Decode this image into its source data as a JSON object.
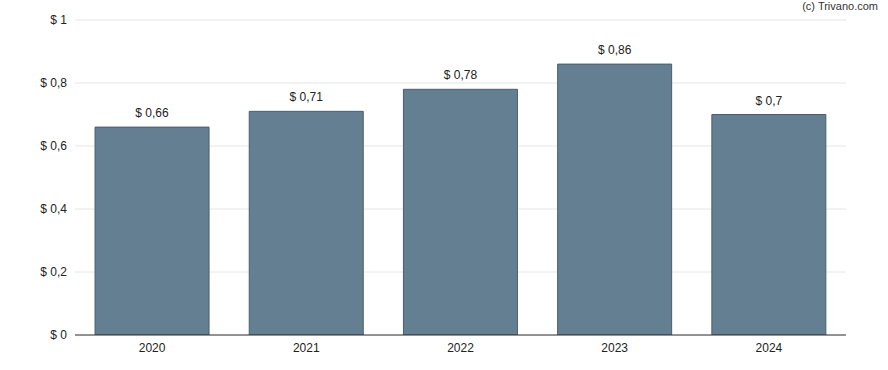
{
  "chart_data": {
    "type": "bar",
    "categories": [
      "2020",
      "2021",
      "2022",
      "2023",
      "2024"
    ],
    "values": [
      0.66,
      0.71,
      0.78,
      0.86,
      0.7
    ],
    "value_labels": [
      "$ 0,66",
      "$ 0,71",
      "$ 0,78",
      "$ 0,86",
      "$ 0,7"
    ],
    "data_labels": true,
    "color": "#657f92",
    "ylim": [
      0,
      1
    ],
    "yticks": [
      {
        "value": 0,
        "label": "$ 0"
      },
      {
        "value": 0.2,
        "label": "$ 0,2"
      },
      {
        "value": 0.4,
        "label": "$ 0,4"
      },
      {
        "value": 0.6,
        "label": "$ 0,6"
      },
      {
        "value": 0.8,
        "label": "$ 0,8"
      },
      {
        "value": 1,
        "label": "$ 1"
      }
    ],
    "grid": true,
    "annotations": [
      "(c) Trivano.com"
    ]
  }
}
